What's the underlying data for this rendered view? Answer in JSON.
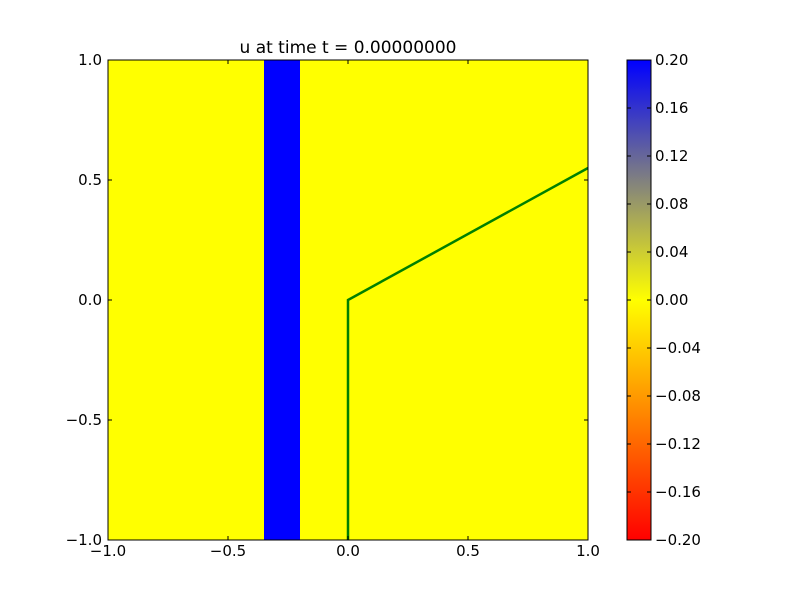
{
  "chart_data": {
    "type": "heatmap",
    "title": "u at time t =     0.00000000",
    "xlabel": "",
    "ylabel": "",
    "xlim": [
      -1.0,
      1.0
    ],
    "ylim": [
      -1.0,
      1.0
    ],
    "x_ticks": [
      -1.0,
      -0.5,
      0.0,
      0.5,
      1.0
    ],
    "x_tick_labels": [
      "−1.0",
      "−0.5",
      "0.0",
      "0.5",
      "1.0"
    ],
    "y_ticks": [
      -1.0,
      -0.5,
      0.0,
      0.5,
      1.0
    ],
    "y_tick_labels": [
      "−1.0",
      "−0.5",
      "0.0",
      "0.5",
      "1.0"
    ],
    "grid": false,
    "field": {
      "background_value": 0.0,
      "background_color": "#ffff00",
      "bands": [
        {
          "x_range": [
            -0.35,
            -0.2
          ],
          "y_range": [
            -1.0,
            1.0
          ],
          "value": 0.2,
          "color": "#0000ff"
        }
      ]
    },
    "series": [
      {
        "x": [
          0.0,
          0.0,
          1.0
        ],
        "y": [
          -1.0,
          0.0,
          0.55
        ],
        "color": "#008000"
      }
    ],
    "colorbar": {
      "range": [
        -0.2,
        0.2
      ],
      "ticks": [
        0.2,
        0.16,
        0.12,
        0.08,
        0.04,
        0.0,
        -0.04,
        -0.08,
        -0.12,
        -0.16,
        -0.2
      ],
      "tick_labels": [
        "0.20",
        "0.16",
        "0.12",
        "0.08",
        "0.04",
        "0.00",
        "−0.04",
        "−0.08",
        "−0.12",
        "−0.16",
        "−0.20"
      ],
      "color_stops": [
        {
          "value": 0.2,
          "color": "#0000ff"
        },
        {
          "value": 0.1,
          "color": "#808080"
        },
        {
          "value": 0.0,
          "color": "#ffff00"
        },
        {
          "value": -0.1,
          "color": "#ff8000"
        },
        {
          "value": -0.2,
          "color": "#ff0000"
        }
      ]
    }
  }
}
